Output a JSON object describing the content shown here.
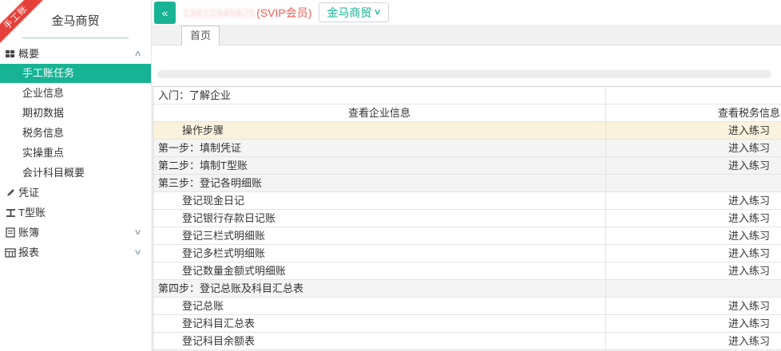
{
  "ribbon": {
    "label": "手工账"
  },
  "sidebar": {
    "company": "金马商贸",
    "items": [
      {
        "label": "概要",
        "icon": "grid-icon",
        "chevron": "up"
      },
      {
        "label": "手工账任务",
        "indent": true,
        "selected": true
      },
      {
        "label": "企业信息",
        "indent": true
      },
      {
        "label": "期初数据",
        "indent": true
      },
      {
        "label": "税务信息",
        "indent": true
      },
      {
        "label": "实操重点",
        "indent": true
      },
      {
        "label": "会计科目概要",
        "indent": true
      },
      {
        "label": "凭证",
        "icon": "pencil-icon"
      },
      {
        "label": "T型账",
        "icon": "tbeam-icon"
      },
      {
        "label": "账簿",
        "icon": "document-icon",
        "chevron": "down"
      },
      {
        "label": "报表",
        "icon": "report-icon",
        "chevron": "down"
      }
    ]
  },
  "header": {
    "collapse_button": "«",
    "account_number": "13812345625",
    "vip_label": "(SVIP会员)",
    "company_button": {
      "label": "金马商贸",
      "caret": "∨"
    }
  },
  "tabs": [
    {
      "label": "首页",
      "active": true
    }
  ],
  "table": {
    "rows": [
      {
        "kind": "title",
        "label": "入门：了解企业"
      },
      {
        "kind": "header",
        "col1": "查看企业信息",
        "col2": "查看税务信息"
      },
      {
        "kind": "item",
        "label": "操作步骤",
        "indent": true,
        "bg": "beige",
        "action": "进入练习"
      },
      {
        "kind": "item",
        "label": "第一步：填制凭证",
        "indent": false,
        "bg": "gray",
        "action": "进入练习"
      },
      {
        "kind": "item",
        "label": "第二步：填制T型账",
        "indent": false,
        "bg": "gray",
        "action": "进入练习"
      },
      {
        "kind": "item",
        "label": "第三步：登记各明细账",
        "indent": false,
        "bg": "gray",
        "action": ""
      },
      {
        "kind": "item",
        "label": "登记现金日记",
        "indent": true,
        "bg": "",
        "action": "进入练习"
      },
      {
        "kind": "item",
        "label": "登记银行存款日记账",
        "indent": true,
        "bg": "",
        "action": "进入练习"
      },
      {
        "kind": "item",
        "label": "登记三栏式明细账",
        "indent": true,
        "bg": "",
        "action": "进入练习"
      },
      {
        "kind": "item",
        "label": "登记多栏式明细账",
        "indent": true,
        "bg": "",
        "action": "进入练习"
      },
      {
        "kind": "item",
        "label": "登记数量金额式明细账",
        "indent": true,
        "bg": "",
        "action": "进入练习"
      },
      {
        "kind": "item",
        "label": "第四步：登记总账及科目汇总表",
        "indent": false,
        "bg": "gray",
        "action": ""
      },
      {
        "kind": "item",
        "label": "登记总账",
        "indent": true,
        "bg": "",
        "action": "进入练习"
      },
      {
        "kind": "item",
        "label": "登记科目汇总表",
        "indent": true,
        "bg": "",
        "action": "进入练习"
      },
      {
        "kind": "item",
        "label": "登记科目余额表",
        "indent": true,
        "bg": "",
        "action": "进入练习"
      },
      {
        "kind": "clipped",
        "label": ""
      }
    ]
  },
  "colors": {
    "accent": "#17b394",
    "ribbon_red": "#e5403a",
    "vip_red": "#f45b56",
    "row_highlight": "#faf2dc",
    "row_section": "#f4f4f4",
    "tab_strip": "#f1f1f1"
  }
}
